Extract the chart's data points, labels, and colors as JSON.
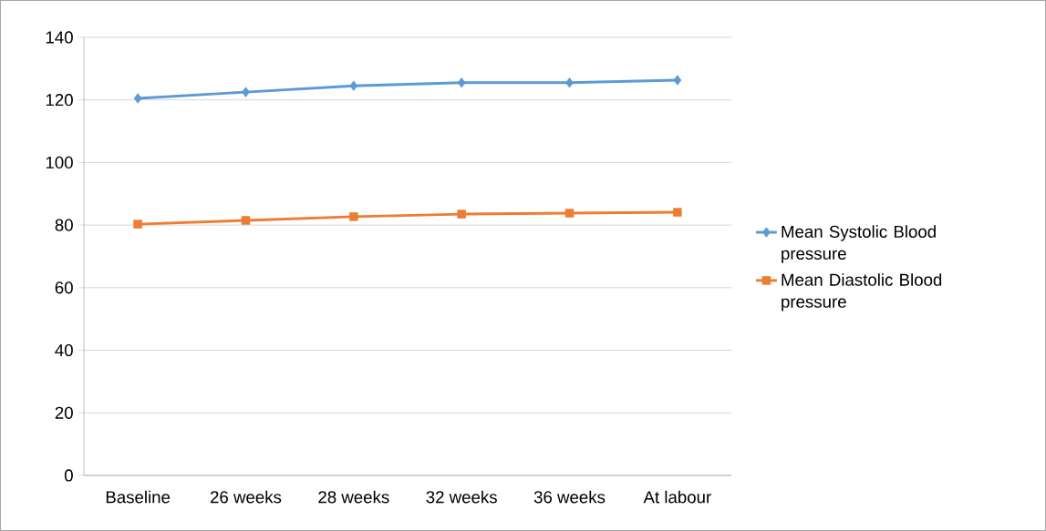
{
  "chart_data": {
    "type": "line",
    "categories": [
      "Baseline",
      "26 weeks",
      "28 weeks",
      "32 weeks",
      "36 weeks",
      "At labour"
    ],
    "series": [
      {
        "name": "Mean Systolic Blood pressure",
        "color": "#5b9bd5",
        "marker": "diamond",
        "values": [
          120.5,
          122.5,
          124.5,
          125.5,
          125.5,
          126.3
        ]
      },
      {
        "name": "Mean Diastolic Blood pressure",
        "color": "#ed7d31",
        "marker": "square",
        "values": [
          80.3,
          81.5,
          82.7,
          83.5,
          83.8,
          84.1
        ]
      }
    ],
    "ylim": [
      0,
      140
    ],
    "yticks": [
      0,
      20,
      40,
      60,
      80,
      100,
      120,
      140
    ],
    "grid": "y",
    "legend": "right"
  }
}
